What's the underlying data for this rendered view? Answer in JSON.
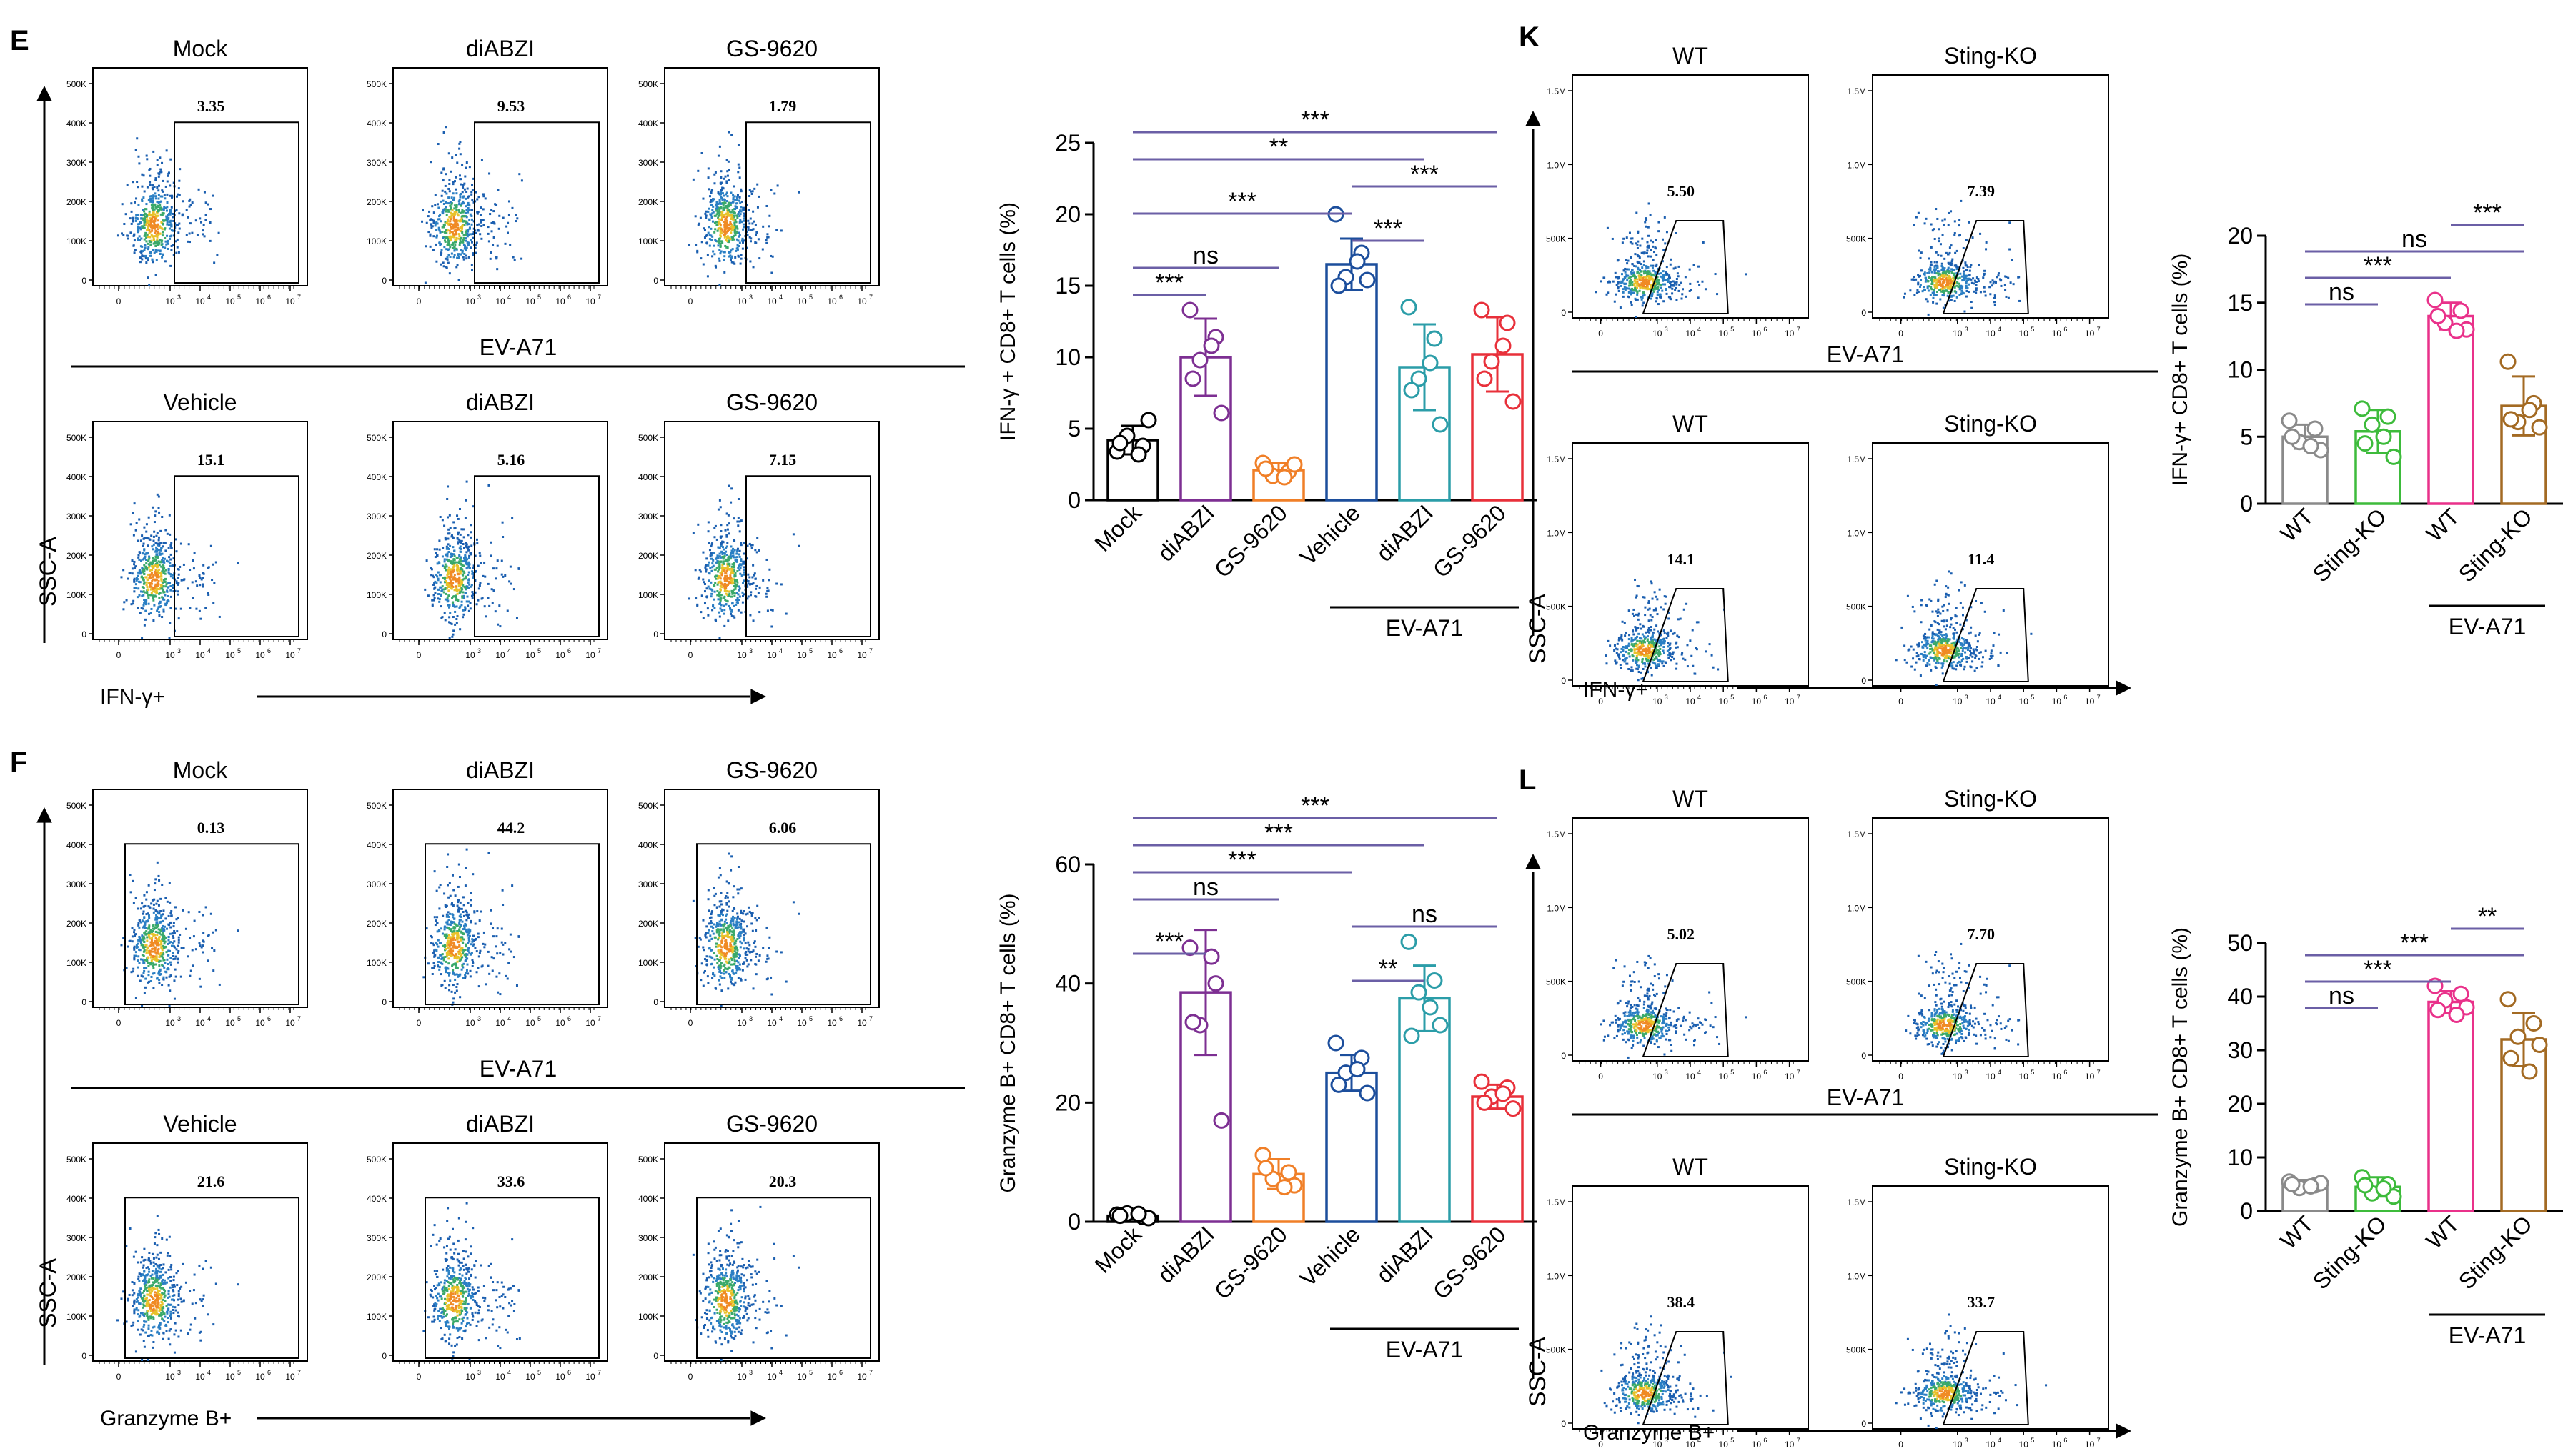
{
  "panels": [
    {
      "label": "E",
      "layout": "left-top"
    },
    {
      "label": "F",
      "layout": "left-bottom"
    },
    {
      "label": "K",
      "layout": "right-top"
    },
    {
      "label": "L",
      "layout": "right-bottom"
    }
  ],
  "labels": {
    "ssc": "SSC-A",
    "ifn_marker": "IFN-γ+",
    "gzm_marker": "Granzyme B+",
    "infection": "EV-A71"
  },
  "flow_groups": {
    "E": {
      "top": [
        "Mock",
        "diABZI",
        "GS-9620"
      ],
      "bottom": [
        "Vehicle",
        "diABZI",
        "GS-9620"
      ],
      "top_values": [
        "3.35",
        "9.53",
        "1.79"
      ],
      "bottom_values": [
        "15.1",
        "5.16",
        "7.15"
      ]
    },
    "F": {
      "top": [
        "Mock",
        "diABZI",
        "GS-9620"
      ],
      "bottom": [
        "Vehicle",
        "diABZI",
        "GS-9620"
      ],
      "top_values": [
        "0.13",
        "44.2",
        "6.06"
      ],
      "bottom_values": [
        "21.6",
        "33.6",
        "20.3"
      ]
    },
    "K": {
      "top": [
        "WT",
        "Sting-KO"
      ],
      "bottom": [
        "WT",
        "Sting-KO"
      ],
      "top_values": [
        "5.50",
        "7.39"
      ],
      "bottom_values": [
        "14.1",
        "11.4"
      ]
    },
    "L": {
      "top": [
        "WT",
        "Sting-KO"
      ],
      "bottom": [
        "WT",
        "Sting-KO"
      ],
      "top_values": [
        "5.02",
        "7.70"
      ],
      "bottom_values": [
        "38.4",
        "33.7"
      ]
    }
  },
  "axis_ticks": {
    "left_y": [
      "0",
      "100K",
      "200K",
      "300K",
      "400K",
      "500K"
    ],
    "right_y": [
      "0",
      "500K",
      "1.0M",
      "1.5M"
    ],
    "x_exp": [
      "3",
      "4",
      "5",
      "6",
      "7"
    ],
    "x_zero": "0"
  },
  "chart_data": [
    {
      "type": "bar",
      "panel": "E",
      "ylabel": "IFN-γ + CD8+ T cells (%)",
      "ylim": [
        0,
        25
      ],
      "yticks": [
        0,
        5,
        10,
        15,
        20,
        25
      ],
      "categories": [
        "Mock",
        "diABZI",
        "GS-9620",
        "Vehicle",
        "diABZI",
        "GS-9620"
      ],
      "values": [
        4.2,
        10.0,
        2.1,
        16.5,
        9.3,
        10.2
      ],
      "errors": [
        1.0,
        2.7,
        0.5,
        1.8,
        3.0,
        2.6
      ],
      "points": [
        [
          3.4,
          3.8,
          4.5,
          5.6,
          4.0,
          3.2
        ],
        [
          13.3,
          11.4,
          9.8,
          6.1,
          8.5,
          10.8
        ],
        [
          2.6,
          2.0,
          1.7,
          2.5,
          2.2,
          1.6
        ],
        [
          20.0,
          17.3,
          15.6,
          15.4,
          15.0,
          16.7
        ],
        [
          13.5,
          11.3,
          8.5,
          5.3,
          7.7,
          9.6
        ],
        [
          13.3,
          12.4,
          9.7,
          6.9,
          8.5,
          10.8
        ]
      ],
      "colors": [
        "#000000",
        "#7d2f92",
        "#f07f27",
        "#1c4e9c",
        "#2b9da8",
        "#e8303a"
      ],
      "group_label": "EV-A71",
      "group_span": [
        3,
        5
      ],
      "significance": [
        {
          "from": 0,
          "to": 5,
          "label": "***"
        },
        {
          "from": 0,
          "to": 4,
          "label": "**"
        },
        {
          "from": 3,
          "to": 5,
          "label": "***"
        },
        {
          "from": 0,
          "to": 3,
          "label": "***"
        },
        {
          "from": 3,
          "to": 4,
          "label": "***"
        },
        {
          "from": 0,
          "to": 2,
          "label": "ns"
        },
        {
          "from": 0,
          "to": 1,
          "label": "***"
        }
      ]
    },
    {
      "type": "bar",
      "panel": "F",
      "ylabel": "Granzyme B+ CD8+ T cells (%)",
      "ylim": [
        0,
        60
      ],
      "yticks": [
        0,
        20,
        40,
        60
      ],
      "categories": [
        "Mock",
        "diABZI",
        "GS-9620",
        "Vehicle",
        "diABZI",
        "GS-9620"
      ],
      "values": [
        1.0,
        38.5,
        8.0,
        25.0,
        37.5,
        21.0
      ],
      "errors": [
        0.4,
        10.5,
        2.5,
        3.0,
        5.5,
        2.0
      ],
      "points": [
        [
          1.2,
          0.8,
          1.4,
          0.6,
          1.0,
          1.3
        ],
        [
          46.0,
          40.0,
          33.0,
          17.0,
          33.5,
          44.5
        ],
        [
          11.2,
          8.3,
          7.2,
          6.1,
          9.0,
          5.8
        ],
        [
          30.0,
          27.5,
          25.0,
          21.6,
          23.0,
          25.6
        ],
        [
          47.0,
          40.5,
          38.5,
          33.0,
          31.2,
          36.0
        ],
        [
          23.5,
          22.5,
          21.0,
          19.0,
          20.0,
          21.5
        ]
      ],
      "colors": [
        "#000000",
        "#7d2f92",
        "#f07f27",
        "#1c4e9c",
        "#2b9da8",
        "#e8303a"
      ],
      "group_label": "EV-A71",
      "group_span": [
        3,
        5
      ],
      "significance": [
        {
          "from": 0,
          "to": 5,
          "label": "***"
        },
        {
          "from": 0,
          "to": 4,
          "label": "***"
        },
        {
          "from": 0,
          "to": 3,
          "label": "***"
        },
        {
          "from": 0,
          "to": 2,
          "label": "ns"
        },
        {
          "from": 3,
          "to": 5,
          "label": "ns"
        },
        {
          "from": 0,
          "to": 1,
          "label": "***"
        },
        {
          "from": 3,
          "to": 4,
          "label": "**"
        }
      ]
    },
    {
      "type": "bar",
      "panel": "K",
      "ylabel": "IFN-γ+ CD8+ T cells (%)",
      "ylim": [
        0,
        20
      ],
      "yticks": [
        0,
        5,
        10,
        15,
        20
      ],
      "categories": [
        "WT",
        "Sting-KO",
        "WT",
        "Sting-KO"
      ],
      "values": [
        5.0,
        5.4,
        14.0,
        7.3
      ],
      "errors": [
        0.9,
        1.6,
        1.0,
        2.2
      ],
      "points": [
        [
          6.2,
          5.6,
          4.6,
          4.0,
          5.0,
          4.3
        ],
        [
          7.1,
          6.5,
          5.9,
          3.5,
          4.5,
          5.0
        ],
        [
          15.2,
          14.4,
          13.5,
          13.0,
          14.0,
          12.9
        ],
        [
          10.6,
          7.5,
          6.1,
          5.7,
          6.3,
          7.0
        ]
      ],
      "colors": [
        "#8a8a8a",
        "#3dbb3b",
        "#e9318a",
        "#a36a23"
      ],
      "group_label": "EV-A71",
      "group_span": [
        2,
        3
      ],
      "significance": [
        {
          "from": 2,
          "to": 3,
          "label": "***"
        },
        {
          "from": 0,
          "to": 3,
          "label": "ns"
        },
        {
          "from": 0,
          "to": 2,
          "label": "***"
        },
        {
          "from": 0,
          "to": 1,
          "label": "ns"
        }
      ]
    },
    {
      "type": "bar",
      "panel": "L",
      "ylabel": "Granzyme B+ CD8+ T cells (%)",
      "ylim": [
        0,
        50
      ],
      "yticks": [
        0,
        10,
        20,
        30,
        40,
        50
      ],
      "categories": [
        "WT",
        "Sting-KO",
        "WT",
        "Sting-KO"
      ],
      "values": [
        5.0,
        4.5,
        39.0,
        32.0
      ],
      "errors": [
        0.8,
        1.8,
        2.0,
        5.0
      ],
      "points": [
        [
          5.5,
          4.8,
          4.3,
          5.2,
          5.0,
          4.6
        ],
        [
          6.3,
          5.0,
          3.3,
          2.7,
          4.8,
          4.2
        ],
        [
          42.0,
          40.5,
          39.3,
          38.0,
          37.5,
          36.6
        ],
        [
          39.5,
          35.0,
          32.5,
          31.0,
          28.5,
          26.0
        ]
      ],
      "colors": [
        "#8a8a8a",
        "#3dbb3b",
        "#e9318a",
        "#a36a23"
      ],
      "group_label": "EV-A71",
      "group_span": [
        2,
        3
      ],
      "significance": [
        {
          "from": 2,
          "to": 3,
          "label": "**"
        },
        {
          "from": 0,
          "to": 3,
          "label": "***"
        },
        {
          "from": 0,
          "to": 2,
          "label": "***"
        },
        {
          "from": 0,
          "to": 1,
          "label": "ns"
        }
      ]
    }
  ]
}
